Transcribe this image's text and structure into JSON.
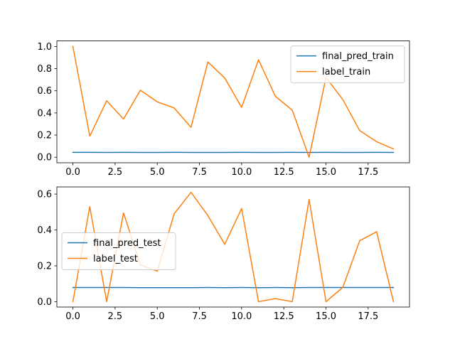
{
  "chart_data": [
    {
      "type": "line",
      "x": [
        0,
        1,
        2,
        3,
        4,
        5,
        6,
        7,
        8,
        9,
        10,
        11,
        12,
        13,
        14,
        15,
        16,
        17,
        18,
        19
      ],
      "series": [
        {
          "name": "final_pred_train",
          "color": "#1f77b4",
          "values": [
            0.044,
            0.044,
            0.043,
            0.044,
            0.043,
            0.043,
            0.044,
            0.043,
            0.043,
            0.043,
            0.044,
            0.043,
            0.043,
            0.044,
            0.043,
            0.044,
            0.043,
            0.043,
            0.044,
            0.043
          ]
        },
        {
          "name": "label_train",
          "color": "#ff7f0e",
          "values": [
            1.0,
            0.19,
            0.51,
            0.345,
            0.605,
            0.5,
            0.445,
            0.27,
            0.86,
            0.715,
            0.45,
            0.88,
            0.55,
            0.425,
            0.0,
            0.72,
            0.52,
            0.24,
            0.14,
            0.075
          ]
        }
      ],
      "xlim": [
        -0.95,
        19.95
      ],
      "ylim": [
        -0.05,
        1.05
      ],
      "xticks": [
        0.0,
        2.5,
        5.0,
        7.5,
        10.0,
        12.5,
        15.0,
        17.5
      ],
      "xtick_labels": [
        "0.0",
        "2.5",
        "5.0",
        "7.5",
        "10.0",
        "12.5",
        "15.0",
        "17.5"
      ],
      "yticks": [
        0.0,
        0.2,
        0.4,
        0.6,
        0.8,
        1.0
      ],
      "ytick_labels": [
        "0.0",
        "0.2",
        "0.4",
        "0.6",
        "0.8",
        "1.0"
      ],
      "grid": false,
      "legend": "top-right",
      "title": "",
      "xlabel": "",
      "ylabel": ""
    },
    {
      "type": "line",
      "x": [
        0,
        1,
        2,
        3,
        4,
        5,
        6,
        7,
        8,
        9,
        10,
        11,
        12,
        13,
        14,
        15,
        16,
        17,
        18,
        19
      ],
      "series": [
        {
          "name": "final_pred_test",
          "color": "#1f77b4",
          "values": [
            0.079,
            0.079,
            0.079,
            0.079,
            0.078,
            0.078,
            0.078,
            0.078,
            0.079,
            0.078,
            0.079,
            0.078,
            0.079,
            0.078,
            0.079,
            0.079,
            0.079,
            0.079,
            0.079,
            0.079
          ]
        },
        {
          "name": "label_test",
          "color": "#ff7f0e",
          "values": [
            0.0,
            0.53,
            0.0,
            0.495,
            0.205,
            0.17,
            0.49,
            0.61,
            0.48,
            0.32,
            0.52,
            0.0,
            0.017,
            0.0,
            0.57,
            0.0,
            0.08,
            0.34,
            0.39,
            0.0
          ]
        }
      ],
      "xlim": [
        -0.95,
        19.95
      ],
      "ylim": [
        -0.03,
        0.64
      ],
      "xticks": [
        0.0,
        2.5,
        5.0,
        7.5,
        10.0,
        12.5,
        15.0,
        17.5
      ],
      "xtick_labels": [
        "0.0",
        "2.5",
        "5.0",
        "7.5",
        "10.0",
        "12.5",
        "15.0",
        "17.5"
      ],
      "yticks": [
        0.0,
        0.2,
        0.4,
        0.6
      ],
      "ytick_labels": [
        "0.0",
        "0.2",
        "0.4",
        "0.6"
      ],
      "grid": false,
      "legend": "center-left",
      "title": "",
      "xlabel": "",
      "ylabel": ""
    }
  ]
}
